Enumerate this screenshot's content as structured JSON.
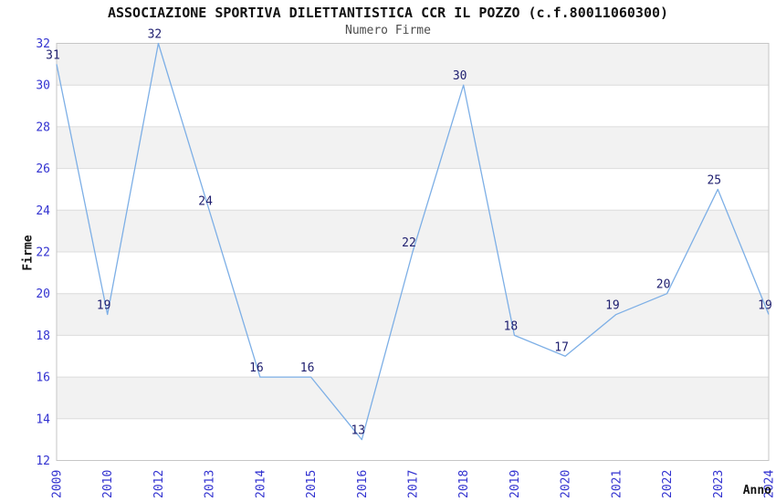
{
  "header": {
    "title": "ASSOCIAZIONE SPORTIVA DILETTANTISTICA CCR IL POZZO (c.f.80011060300)",
    "subtitle": "Numero Firme"
  },
  "chart_data": {
    "type": "line",
    "title": "ASSOCIAZIONE SPORTIVA DILETTANTISTICA CCR IL POZZO (c.f.80011060300)",
    "subtitle": "Numero Firme",
    "categories": [
      "2009",
      "2010",
      "2012",
      "2013",
      "2014",
      "2015",
      "2016",
      "2017",
      "2018",
      "2019",
      "2020",
      "2021",
      "2022",
      "2023",
      "2024"
    ],
    "values": [
      31,
      19,
      32,
      24,
      16,
      16,
      13,
      22,
      30,
      18,
      17,
      19,
      20,
      25,
      19
    ],
    "xlabel": "Anno",
    "ylabel": "Firme",
    "ylim": [
      12,
      32
    ],
    "ytick_step": 2,
    "yticks": [
      12,
      14,
      16,
      18,
      20,
      22,
      24,
      26,
      28,
      30,
      32
    ],
    "grid": true,
    "legend_position": "none",
    "point_labels_shown": true,
    "x_tick_rotation_deg": 90,
    "colors": {
      "line": "#7dafe6",
      "tick_label": "#3232d0",
      "point_label": "#202070",
      "band": "#f2f2f2",
      "gridline": "#dcdcdc",
      "plot_border": "#c6c6c6",
      "title": "#111111",
      "subtitle": "#4d4d4d",
      "axis_label": "#111111",
      "background": "#ffffff"
    }
  }
}
